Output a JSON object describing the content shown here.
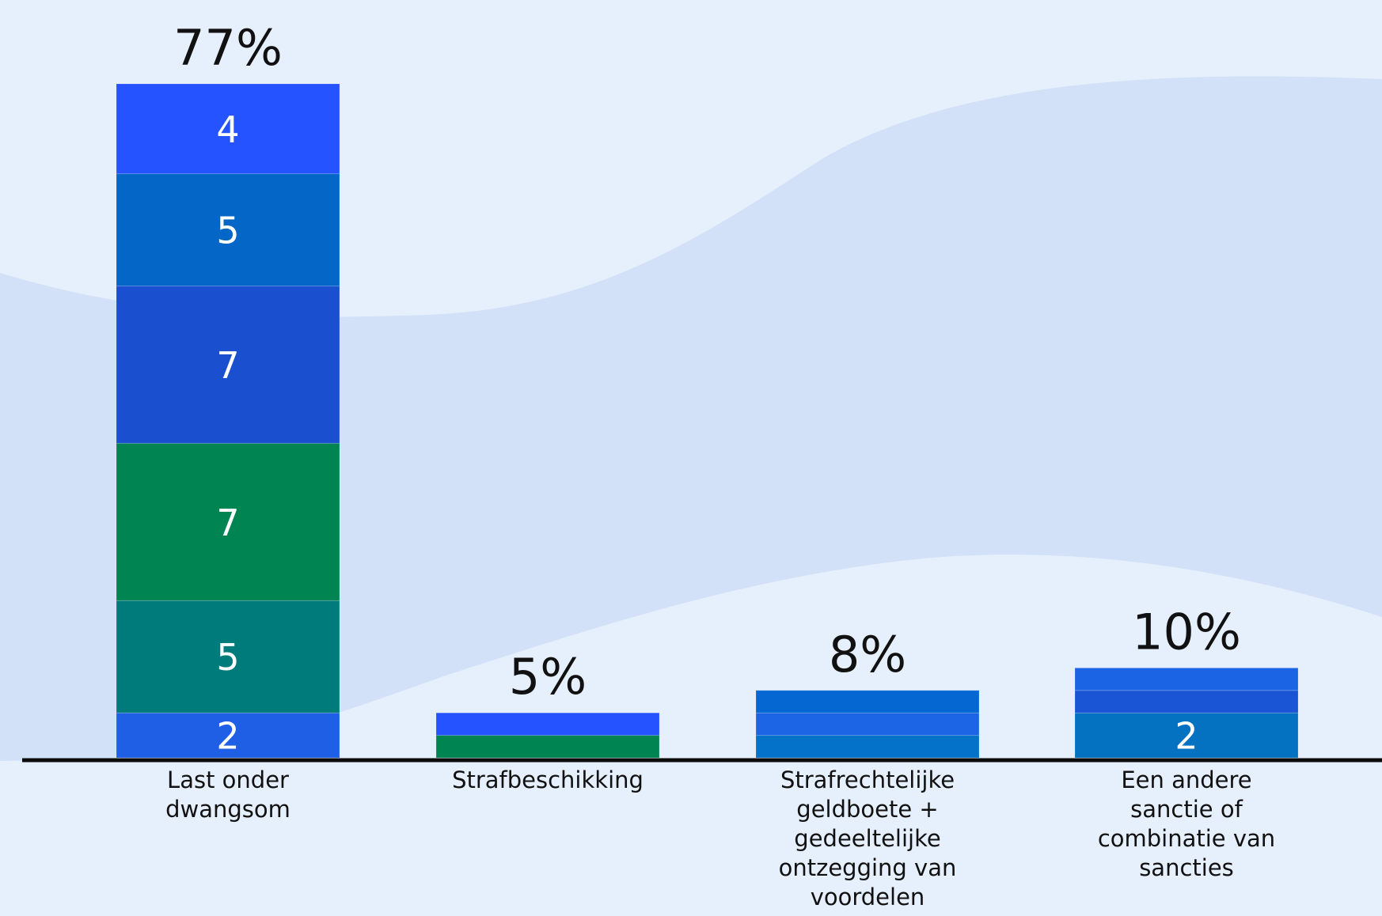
{
  "chart_data": {
    "type": "bar",
    "stacked": true,
    "grid": false,
    "legend": "none",
    "colors": {
      "background": "#e6effc",
      "wave": "#d2e1f8",
      "axis": "#0b0b0b",
      "segment_label": "#ffffff",
      "text": "#111111"
    },
    "categories": [
      {
        "label_lines": [
          "Last onder",
          "dwangsom"
        ],
        "total_label": "77%",
        "total": 30,
        "segments": [
          {
            "value": 2,
            "label": "2",
            "color": "#1f5fe6"
          },
          {
            "value": 5,
            "label": "5",
            "color": "#007b7b"
          },
          {
            "value": 7,
            "label": "7",
            "color": "#008552"
          },
          {
            "value": 7,
            "label": "7",
            "color": "#1a4fd0"
          },
          {
            "value": 5,
            "label": "5",
            "color": "#0467c7"
          },
          {
            "value": 4,
            "label": "4",
            "color": "#2453ff"
          }
        ]
      },
      {
        "label_lines": [
          "Strafbeschikking"
        ],
        "total_label": "5%",
        "total": 2,
        "segments": [
          {
            "value": 1,
            "label": "",
            "color": "#008552"
          },
          {
            "value": 1,
            "label": "",
            "color": "#2453ff"
          }
        ]
      },
      {
        "label_lines": [
          "Strafrechtelijke",
          "geldboete +",
          "gedeeltelijke",
          "ontzegging van",
          "voordelen"
        ],
        "total_label": "8%",
        "total": 3,
        "segments": [
          {
            "value": 1,
            "label": "",
            "color": "#0472c9"
          },
          {
            "value": 1,
            "label": "",
            "color": "#1c66e6"
          },
          {
            "value": 1,
            "label": "",
            "color": "#0568d2"
          }
        ]
      },
      {
        "label_lines": [
          "Een andere",
          "sanctie of",
          "combinatie van",
          "sancties"
        ],
        "total_label": "10%",
        "total": 4,
        "segments": [
          {
            "value": 2,
            "label": "2",
            "color": "#0472c0"
          },
          {
            "value": 1,
            "label": "",
            "color": "#1a55d6"
          },
          {
            "value": 1,
            "label": "",
            "color": "#1b64e4"
          }
        ]
      }
    ]
  }
}
